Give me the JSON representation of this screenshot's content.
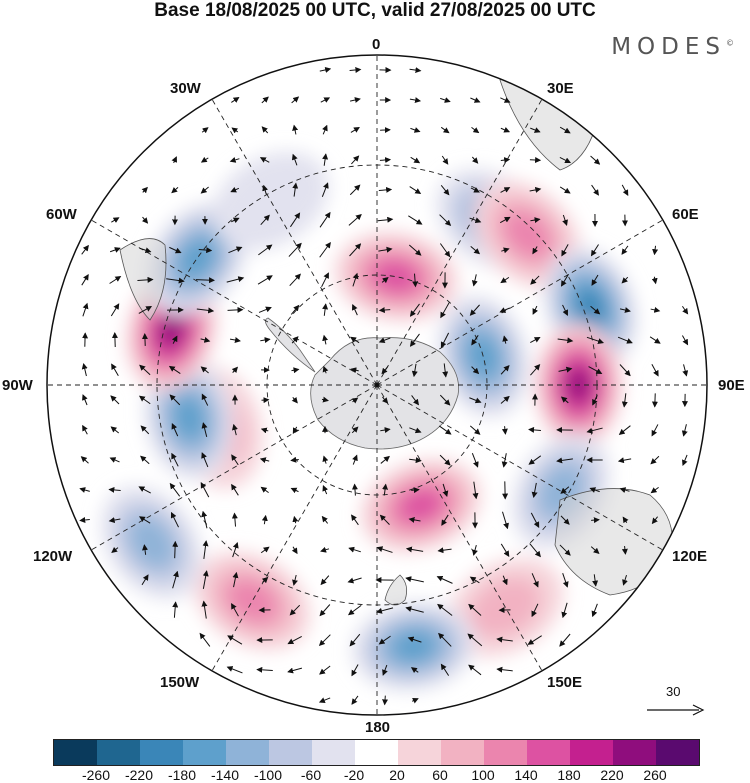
{
  "title": "Base 18/08/2025 00 UTC, valid 27/08/2025 00 UTC",
  "brand": "MODES",
  "brand_mark": "©",
  "longitude_labels": {
    "lon_0": "0",
    "lon_30e": "30E",
    "lon_60e": "60E",
    "lon_90e": "90E",
    "lon_120e": "120E",
    "lon_150e": "150E",
    "lon_180": "180",
    "lon_150w": "150W",
    "lon_120w": "120W",
    "lon_90w": "90W",
    "lon_60w": "60W",
    "lon_30w": "30W"
  },
  "vector_reference": {
    "value": "30",
    "icon": "arrow-right-icon"
  },
  "colorbar": {
    "colors": [
      "#0a3a5c",
      "#1f6690",
      "#3a86b8",
      "#5ea0cc",
      "#8fb3d8",
      "#bcc7e2",
      "#e2e2ef",
      "#ffffff",
      "#f6d4da",
      "#f2b2c2",
      "#eb85ae",
      "#dd52a2",
      "#c4208f",
      "#8f0d7d",
      "#5a0a6f"
    ],
    "ticks": [
      "-260",
      "-220",
      "-180",
      "-140",
      "-100",
      "-60",
      "-20",
      "20",
      "60",
      "100",
      "140",
      "180",
      "220",
      "260"
    ]
  },
  "anomaly_centers": [
    {
      "lon": 10,
      "colat": 30,
      "value": 170
    },
    {
      "lon": 35,
      "colat": 55,
      "value": -130
    },
    {
      "lon": 45,
      "colat": 58,
      "value": 120
    },
    {
      "lon": 70,
      "colat": 62,
      "value": -200
    },
    {
      "lon": 75,
      "colat": 30,
      "value": -170
    },
    {
      "lon": 90,
      "colat": 55,
      "value": 230
    },
    {
      "lon": 120,
      "colat": 58,
      "value": -130
    },
    {
      "lon": 150,
      "colat": 70,
      "value": 60
    },
    {
      "lon": 160,
      "colat": 35,
      "value": 160
    },
    {
      "lon": 172,
      "colat": 72,
      "value": -160
    },
    {
      "lon": -150,
      "colat": 68,
      "value": 130
    },
    {
      "lon": -125,
      "colat": 75,
      "value": -120
    },
    {
      "lon": -105,
      "colat": 45,
      "value": 80
    },
    {
      "lon": -100,
      "colat": 52,
      "value": -150
    },
    {
      "lon": -75,
      "colat": 58,
      "value": 250
    },
    {
      "lon": -55,
      "colat": 60,
      "value": -140
    },
    {
      "lon": -30,
      "colat": 58,
      "value": -40
    }
  ]
}
